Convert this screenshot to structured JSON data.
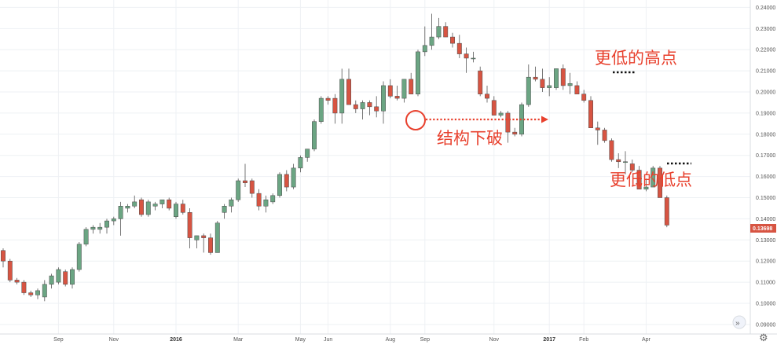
{
  "colors": {
    "up": "#6ba583",
    "down": "#d75442",
    "grid": "#eef1f4",
    "annotation": "#e8412e",
    "dots": "#111111"
  },
  "icons": {
    "scroll": "double-chevron-right-icon",
    "settings": "gear-icon"
  },
  "chart_data": {
    "type": "candlestick",
    "title": "",
    "xlabel": "",
    "ylabel": "",
    "ylim": [
      0.0855,
      0.2435
    ],
    "yticks": [
      "0.24000",
      "0.23000",
      "0.22000",
      "0.21000",
      "0.20000",
      "0.19000",
      "0.18000",
      "0.17000",
      "0.16000",
      "0.15000",
      "0.14000",
      "0.13000",
      "0.12000",
      "0.11000",
      "0.10000",
      "0.09000"
    ],
    "xticks": [
      {
        "label": "Sep",
        "index": 8,
        "year": false
      },
      {
        "label": "Nov",
        "index": 16,
        "year": false
      },
      {
        "label": "2016",
        "index": 25,
        "year": true
      },
      {
        "label": "Mar",
        "index": 34,
        "year": false
      },
      {
        "label": "May",
        "index": 43,
        "year": false
      },
      {
        "label": "Jun",
        "index": 47,
        "year": false
      },
      {
        "label": "Aug",
        "index": 56,
        "year": false
      },
      {
        "label": "Sep",
        "index": 61,
        "year": false
      },
      {
        "label": "Nov",
        "index": 71,
        "year": false
      },
      {
        "label": "2017",
        "index": 79,
        "year": true
      },
      {
        "label": "Feb",
        "index": 84,
        "year": false
      },
      {
        "label": "Apr",
        "index": 93,
        "year": false
      }
    ],
    "last_price": "0.13698",
    "candles": [
      [
        0.125,
        0.126,
        0.117,
        0.12
      ],
      [
        0.12,
        0.121,
        0.11,
        0.111
      ],
      [
        0.111,
        0.112,
        0.109,
        0.11
      ],
      [
        0.11,
        0.111,
        0.104,
        0.105
      ],
      [
        0.105,
        0.106,
        0.103,
        0.104
      ],
      [
        0.104,
        0.107,
        0.102,
        0.106
      ],
      [
        0.103,
        0.111,
        0.101,
        0.109
      ],
      [
        0.109,
        0.114,
        0.107,
        0.113
      ],
      [
        0.11,
        0.117,
        0.109,
        0.116
      ],
      [
        0.115,
        0.116,
        0.108,
        0.109
      ],
      [
        0.109,
        0.117,
        0.107,
        0.116
      ],
      [
        0.116,
        0.129,
        0.115,
        0.128
      ],
      [
        0.128,
        0.136,
        0.127,
        0.135
      ],
      [
        0.135,
        0.137,
        0.133,
        0.136
      ],
      [
        0.135,
        0.138,
        0.133,
        0.136
      ],
      [
        0.136,
        0.14,
        0.133,
        0.139
      ],
      [
        0.139,
        0.141,
        0.137,
        0.14
      ],
      [
        0.14,
        0.148,
        0.132,
        0.146
      ],
      [
        0.145,
        0.147,
        0.143,
        0.146
      ],
      [
        0.146,
        0.151,
        0.145,
        0.148
      ],
      [
        0.149,
        0.15,
        0.141,
        0.142
      ],
      [
        0.142,
        0.149,
        0.141,
        0.148
      ],
      [
        0.146,
        0.148,
        0.144,
        0.147
      ],
      [
        0.147,
        0.149,
        0.145,
        0.149
      ],
      [
        0.149,
        0.15,
        0.144,
        0.145
      ],
      [
        0.141,
        0.148,
        0.14,
        0.147
      ],
      [
        0.147,
        0.149,
        0.142,
        0.143
      ],
      [
        0.143,
        0.145,
        0.126,
        0.131
      ],
      [
        0.13,
        0.132,
        0.126,
        0.132
      ],
      [
        0.132,
        0.133,
        0.124,
        0.131
      ],
      [
        0.131,
        0.133,
        0.123,
        0.124
      ],
      [
        0.124,
        0.139,
        0.124,
        0.138
      ],
      [
        0.143,
        0.147,
        0.14,
        0.146
      ],
      [
        0.146,
        0.15,
        0.143,
        0.149
      ],
      [
        0.149,
        0.159,
        0.148,
        0.158
      ],
      [
        0.158,
        0.166,
        0.155,
        0.157
      ],
      [
        0.158,
        0.159,
        0.15,
        0.152
      ],
      [
        0.152,
        0.154,
        0.144,
        0.146
      ],
      [
        0.146,
        0.151,
        0.143,
        0.149
      ],
      [
        0.148,
        0.152,
        0.147,
        0.151
      ],
      [
        0.151,
        0.162,
        0.15,
        0.161
      ],
      [
        0.161,
        0.163,
        0.153,
        0.155
      ],
      [
        0.155,
        0.166,
        0.154,
        0.164
      ],
      [
        0.164,
        0.17,
        0.162,
        0.169
      ],
      [
        0.169,
        0.173,
        0.167,
        0.173
      ],
      [
        0.173,
        0.187,
        0.172,
        0.186
      ],
      [
        0.186,
        0.198,
        0.185,
        0.197
      ],
      [
        0.197,
        0.198,
        0.194,
        0.196
      ],
      [
        0.197,
        0.199,
        0.185,
        0.19
      ],
      [
        0.19,
        0.211,
        0.185,
        0.206
      ],
      [
        0.206,
        0.211,
        0.194,
        0.194
      ],
      [
        0.194,
        0.196,
        0.19,
        0.192
      ],
      [
        0.192,
        0.196,
        0.187,
        0.195
      ],
      [
        0.195,
        0.196,
        0.189,
        0.193
      ],
      [
        0.193,
        0.198,
        0.188,
        0.191
      ],
      [
        0.191,
        0.205,
        0.185,
        0.203
      ],
      [
        0.203,
        0.206,
        0.197,
        0.198
      ],
      [
        0.198,
        0.203,
        0.196,
        0.197
      ],
      [
        0.197,
        0.206,
        0.195,
        0.206
      ],
      [
        0.206,
        0.209,
        0.199,
        0.199
      ],
      [
        0.199,
        0.22,
        0.198,
        0.219
      ],
      [
        0.219,
        0.231,
        0.217,
        0.222
      ],
      [
        0.222,
        0.237,
        0.22,
        0.226
      ],
      [
        0.226,
        0.235,
        0.225,
        0.231
      ],
      [
        0.231,
        0.233,
        0.226,
        0.226
      ],
      [
        0.226,
        0.228,
        0.221,
        0.223
      ],
      [
        0.223,
        0.227,
        0.216,
        0.218
      ],
      [
        0.218,
        0.221,
        0.209,
        0.216
      ],
      [
        0.216,
        0.219,
        0.214,
        0.216
      ],
      [
        0.21,
        0.212,
        0.198,
        0.199
      ],
      [
        0.199,
        0.203,
        0.195,
        0.197
      ],
      [
        0.196,
        0.198,
        0.189,
        0.189
      ],
      [
        0.189,
        0.191,
        0.188,
        0.19
      ],
      [
        0.19,
        0.191,
        0.176,
        0.181
      ],
      [
        0.181,
        0.183,
        0.179,
        0.18
      ],
      [
        0.18,
        0.195,
        0.179,
        0.194
      ],
      [
        0.194,
        0.213,
        0.193,
        0.207
      ],
      [
        0.207,
        0.212,
        0.205,
        0.206
      ],
      [
        0.206,
        0.211,
        0.2,
        0.202
      ],
      [
        0.202,
        0.207,
        0.198,
        0.203
      ],
      [
        0.202,
        0.211,
        0.201,
        0.211
      ],
      [
        0.211,
        0.213,
        0.201,
        0.203
      ],
      [
        0.203,
        0.209,
        0.199,
        0.204
      ],
      [
        0.203,
        0.205,
        0.199,
        0.199
      ],
      [
        0.199,
        0.201,
        0.195,
        0.196
      ],
      [
        0.196,
        0.198,
        0.183,
        0.183
      ],
      [
        0.183,
        0.186,
        0.175,
        0.182
      ],
      [
        0.182,
        0.183,
        0.176,
        0.177
      ],
      [
        0.177,
        0.178,
        0.167,
        0.168
      ],
      [
        0.168,
        0.171,
        0.164,
        0.167
      ],
      [
        0.167,
        0.172,
        0.161,
        0.167
      ],
      [
        0.166,
        0.168,
        0.162,
        0.163
      ],
      [
        0.163,
        0.165,
        0.154,
        0.154
      ],
      [
        0.154,
        0.159,
        0.153,
        0.155
      ],
      [
        0.155,
        0.165,
        0.155,
        0.164
      ],
      [
        0.164,
        0.165,
        0.15,
        0.15
      ],
      [
        0.15,
        0.151,
        0.136,
        0.137
      ]
    ],
    "annotations": {
      "lower_high": "更低的高点",
      "structure_break": "结构下破",
      "lower_low": "更低的低点"
    }
  }
}
